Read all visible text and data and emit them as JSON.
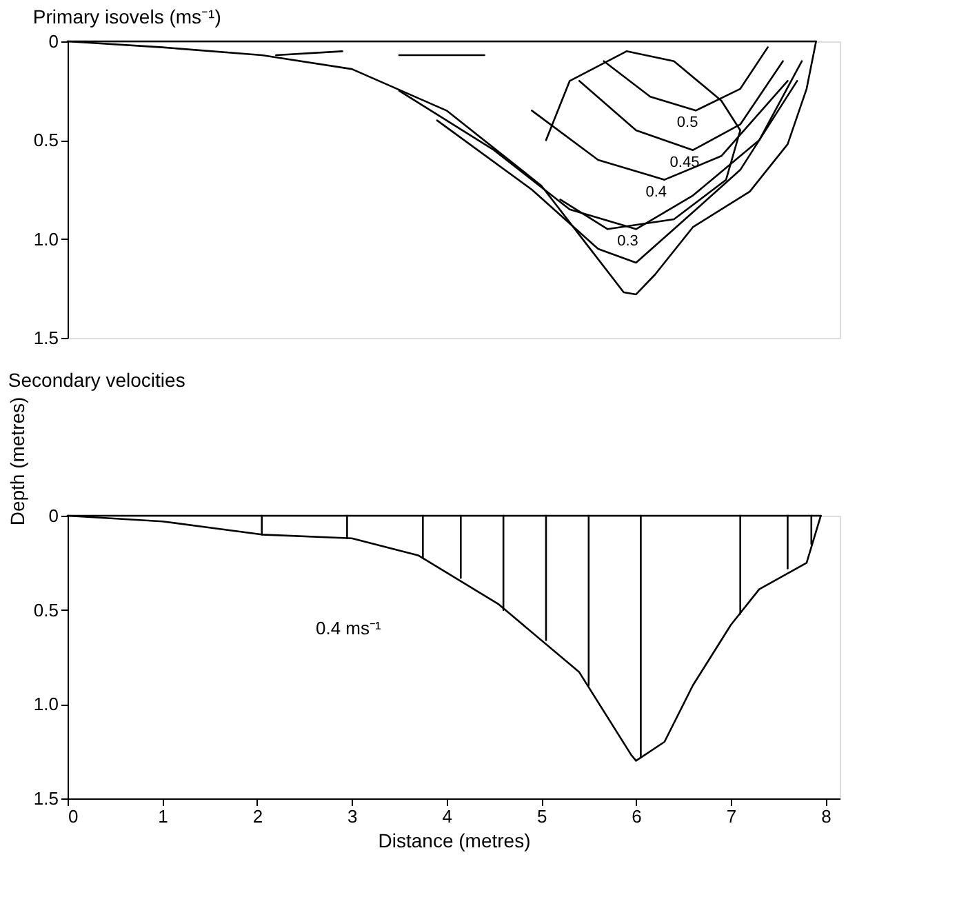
{
  "chart_data": [
    {
      "type": "line",
      "title": "Primary isovels (ms⁻¹)",
      "xlim": [
        0,
        8.15
      ],
      "ylim": [
        1.5,
        0
      ],
      "yticks": [
        0,
        0.5,
        {
          "value": 1.0,
          "label": "1.0"
        },
        1.5
      ],
      "tick_labels": "y",
      "grid": false,
      "marker": "none",
      "line_style": "solid",
      "series": [
        {
          "color": "#000000",
          "x": [
            0,
            1,
            2.05,
            3,
            4,
            5,
            5.5,
            5.87,
            6,
            6.2,
            6.6,
            7.2,
            7.6,
            7.8,
            7.9
          ],
          "values": [
            0,
            0.03,
            0.07,
            0.14,
            0.35,
            0.73,
            1.04,
            1.27,
            1.28,
            1.18,
            0.94,
            0.76,
            0.52,
            0.24,
            0
          ]
        },
        {
          "color": "#000000",
          "x": [
            5.66,
            6.15,
            6.63,
            7.1,
            7.39
          ],
          "values": [
            0.1,
            0.28,
            0.35,
            0.24,
            0.03
          ]
        },
        {
          "color": "#000000",
          "x": [
            5.4,
            6,
            6.6,
            7.1,
            7.55
          ],
          "values": [
            0.2,
            0.45,
            0.55,
            0.42,
            0.1
          ]
        },
        {
          "color": "#000000",
          "x": [
            4.9,
            5.6,
            6.3,
            6.9,
            7.6
          ],
          "values": [
            0.35,
            0.6,
            0.7,
            0.58,
            0.2
          ]
        },
        {
          "color": "#000000",
          "x": [
            3.5,
            4.5,
            5.3,
            6,
            6.6,
            7.3,
            7.75
          ],
          "values": [
            0.25,
            0.55,
            0.85,
            0.95,
            0.78,
            0.5,
            0.1
          ]
        },
        {
          "color": "#000000",
          "x": [
            3.9,
            4.9,
            5.6,
            6,
            6.4,
            7.1,
            7.7
          ],
          "values": [
            0.4,
            0.75,
            1.05,
            1.12,
            0.95,
            0.65,
            0.2
          ]
        },
        {
          "color": "#000000",
          "x": [
            0,
            7.9
          ],
          "values": [
            0,
            0
          ]
        },
        {
          "color": "#000000",
          "x": [
            2.2,
            2.9
          ],
          "values": [
            0.07,
            0.05
          ]
        },
        {
          "color": "#000000",
          "x": [
            3.5,
            4.4
          ],
          "values": [
            0.07,
            0.07
          ]
        },
        {
          "color": "#000000",
          "x": [
            5.05,
            5.3,
            5.9,
            6.4,
            6.9,
            7.1
          ],
          "values": [
            0.5,
            0.2,
            0.05,
            0.1,
            0.3,
            0.45
          ]
        },
        {
          "color": "#000000",
          "x": [
            5.2,
            5.7,
            6.4,
            6.95,
            7.1
          ],
          "values": [
            0.8,
            0.95,
            0.9,
            0.7,
            0.45
          ]
        }
      ],
      "annotations": [
        "0.5",
        "0.45",
        "0.4",
        "0.3"
      ]
    },
    {
      "type": "line",
      "title": "Secondary velocities",
      "xlabel": "Distance (metres)",
      "ylabel": "Depth (metres)",
      "xlim": [
        0,
        8.15
      ],
      "xticks": [
        0,
        1,
        2,
        3,
        4,
        5,
        6,
        7,
        8
      ],
      "ylim": [
        1.5,
        0
      ],
      "yticks": [
        0,
        0.5,
        {
          "value": 1.0,
          "label": "1.0"
        },
        1.5
      ],
      "grid": false,
      "marker": "none",
      "line_style": "solid",
      "series": [
        {
          "color": "#000000",
          "x": [
            0,
            1,
            2.05,
            3,
            3.7,
            4.55,
            5.4,
            5.95,
            6,
            6.3,
            6.6,
            7,
            7.3,
            7.8,
            7.95
          ],
          "values": [
            0,
            0.03,
            0.1,
            0.12,
            0.21,
            0.47,
            0.83,
            1.27,
            1.3,
            1.2,
            0.9,
            0.58,
            0.39,
            0.25,
            0
          ]
        },
        {
          "color": "#000000",
          "x": [
            0,
            7.95
          ],
          "values": [
            0,
            0
          ]
        },
        {
          "color": "#000000",
          "x": [
            2.05,
            2.05
          ],
          "values": [
            0,
            0.1
          ]
        },
        {
          "color": "#000000",
          "x": [
            2.95,
            2.95
          ],
          "values": [
            0,
            0.12
          ]
        },
        {
          "color": "#000000",
          "x": [
            3.75,
            3.75
          ],
          "values": [
            0,
            0.22
          ]
        },
        {
          "color": "#000000",
          "x": [
            4.15,
            4.15
          ],
          "values": [
            0,
            0.33
          ]
        },
        {
          "color": "#000000",
          "x": [
            4.6,
            4.6
          ],
          "values": [
            0,
            0.5
          ]
        },
        {
          "color": "#000000",
          "x": [
            5.05,
            5.05
          ],
          "values": [
            0,
            0.66
          ]
        },
        {
          "color": "#000000",
          "x": [
            5.5,
            5.5
          ],
          "values": [
            0,
            0.9
          ]
        },
        {
          "color": "#000000",
          "x": [
            6.05,
            6.05
          ],
          "values": [
            0,
            1.28
          ]
        },
        {
          "color": "#000000",
          "x": [
            7.1,
            7.1
          ],
          "values": [
            0,
            0.52
          ]
        },
        {
          "color": "#000000",
          "x": [
            7.6,
            7.6
          ],
          "values": [
            0,
            0.28
          ]
        },
        {
          "color": "#000000",
          "x": [
            7.85,
            7.85
          ],
          "values": [
            0,
            0.15
          ]
        }
      ],
      "annotations": [
        "0.4 ms⁻¹"
      ]
    }
  ]
}
